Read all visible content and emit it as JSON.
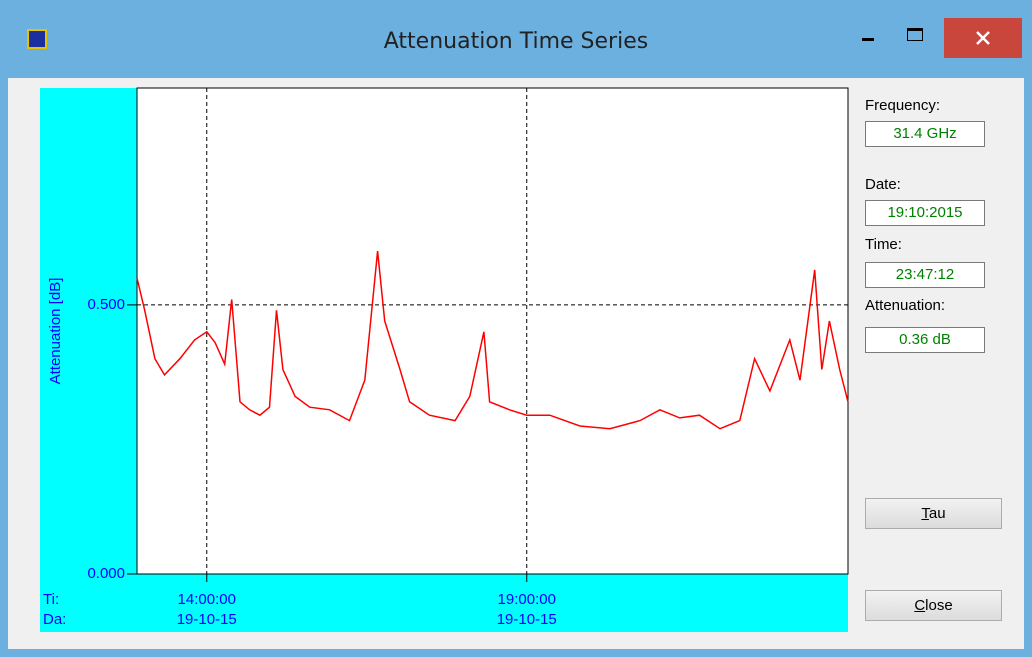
{
  "window": {
    "title": "Attenuation Time Series"
  },
  "chart_data": {
    "type": "line",
    "y_label": "Attenuation [dB]",
    "x_row_labels": [
      "Ti:",
      "Da:"
    ],
    "x": [
      12.91,
      13.03,
      13.19,
      13.34,
      13.58,
      13.81,
      14.0,
      14.13,
      14.28,
      14.39,
      14.52,
      14.67,
      14.83,
      14.98,
      15.09,
      15.19,
      15.38,
      15.61,
      15.92,
      16.23,
      16.47,
      16.67,
      16.78,
      17.02,
      17.17,
      17.48,
      17.88,
      18.11,
      18.33,
      18.42,
      18.73,
      19.0,
      19.36,
      19.83,
      20.3,
      20.77,
      21.08,
      21.39,
      21.7,
      22.02,
      22.33,
      22.56,
      22.8,
      23.11,
      23.27,
      23.5,
      23.61,
      23.73,
      23.89,
      24.02
    ],
    "series": [
      {
        "name": "Attenuation",
        "color": "#ff0000",
        "values": [
          0.55,
          0.49,
          0.4,
          0.37,
          0.4,
          0.435,
          0.45,
          0.43,
          0.39,
          0.51,
          0.32,
          0.305,
          0.295,
          0.31,
          0.49,
          0.38,
          0.33,
          0.31,
          0.305,
          0.285,
          0.36,
          0.6,
          0.47,
          0.38,
          0.32,
          0.295,
          0.285,
          0.33,
          0.45,
          0.32,
          0.305,
          0.295,
          0.295,
          0.275,
          0.27,
          0.285,
          0.305,
          0.29,
          0.295,
          0.27,
          0.285,
          0.4,
          0.34,
          0.435,
          0.36,
          0.565,
          0.38,
          0.47,
          0.38,
          0.32
        ]
      }
    ],
    "xlim": [
      12.91,
      24.02
    ],
    "xticks": [
      {
        "value": 14,
        "label": "14:00:00"
      },
      {
        "value": 19,
        "label": "19:00:00"
      }
    ],
    "xtick_dates": [
      "19-10-15",
      "19-10-15"
    ],
    "ylim": [
      0,
      0.903
    ],
    "yticks": [
      {
        "value": 0,
        "label": "0.000"
      },
      {
        "value": 0.5,
        "label": "0.500"
      }
    ],
    "grid": true
  },
  "panel": {
    "fields": [
      {
        "label": "Frequency:",
        "value": "31.4 GHz"
      },
      {
        "label": "Date:",
        "value": "19:10:2015"
      },
      {
        "label": "Time:",
        "value": "23:47:12"
      },
      {
        "label": "Attenuation:",
        "value": "0.36 dB"
      }
    ],
    "buttons": [
      "Tau",
      "Close"
    ]
  }
}
